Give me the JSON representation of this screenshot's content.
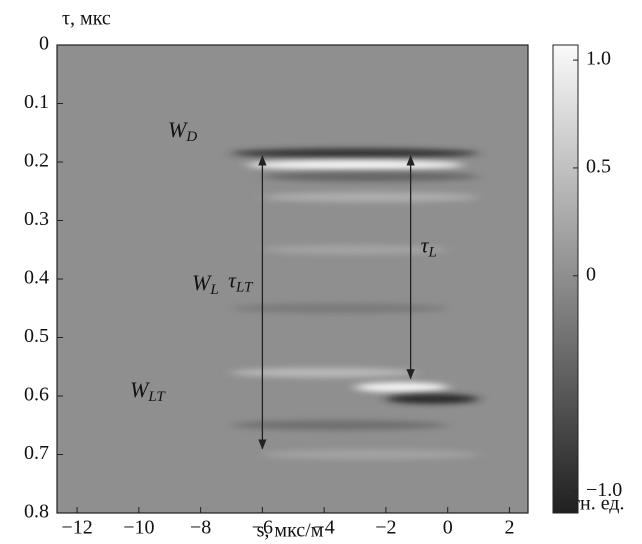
{
  "chart_data": {
    "type": "heatmap",
    "y_label": "τ, мкс",
    "x_label": "s, мкс/м",
    "colorbar_label": "отн. ед.",
    "xlim": [
      -12.65,
      2.6
    ],
    "ylim": [
      0,
      0.8
    ],
    "y_reversed": true,
    "xticks": [
      {
        "value": -12,
        "label": "−12"
      },
      {
        "value": -10,
        "label": "−10"
      },
      {
        "value": -8,
        "label": "−8"
      },
      {
        "value": -6,
        "label": "−6"
      },
      {
        "value": -4,
        "label": "−4"
      },
      {
        "value": -2,
        "label": "−2"
      },
      0,
      2
    ],
    "yticks": [
      0,
      0.1,
      0.2,
      0.3,
      0.4,
      0.5,
      0.6,
      0.7,
      0.8
    ],
    "clim": [
      -1.1,
      1.07
    ],
    "cticks": [
      {
        "value": 1,
        "label": "1.0"
      },
      0.5,
      0,
      {
        "value": -1,
        "label": "−1.0"
      }
    ],
    "streaks": [
      {
        "tau": 0.185,
        "s_start": -7,
        "s_end": 1,
        "amplitude": -0.9
      },
      {
        "tau": 0.205,
        "s_start": -6.5,
        "s_end": 0.5,
        "amplitude": 1.0
      },
      {
        "tau": 0.225,
        "s_start": -6,
        "s_end": 1,
        "amplitude": -0.4
      },
      {
        "tau": 0.26,
        "s_start": -6,
        "s_end": 1,
        "amplitude": 0.3
      },
      {
        "tau": 0.35,
        "s_start": -6,
        "s_end": 0,
        "amplitude": 0.2
      },
      {
        "tau": 0.45,
        "s_start": -7,
        "s_end": 0,
        "amplitude": -0.2
      },
      {
        "tau": 0.56,
        "s_start": -7,
        "s_end": -1,
        "amplitude": 0.4
      },
      {
        "tau": 0.585,
        "s_start": -3,
        "s_end": 0,
        "amplitude": 1.0
      },
      {
        "tau": 0.605,
        "s_start": -2,
        "s_end": 1,
        "amplitude": -1.0
      },
      {
        "tau": 0.65,
        "s_start": -7,
        "s_end": 0,
        "amplitude": -0.3
      },
      {
        "tau": 0.7,
        "s_start": -6,
        "s_end": 1,
        "amplitude": 0.2
      }
    ],
    "arrows": [
      {
        "text": "τ",
        "sub": "LT",
        "s": -6,
        "tau": [
          0.19,
          0.69
        ]
      },
      {
        "text": "τ",
        "sub": "L",
        "s": -1.2,
        "tau": [
          0.19,
          0.57
        ]
      }
    ],
    "annotations": [
      {
        "text": "W",
        "sub": "D"
      },
      {
        "text": "W",
        "sub": "L"
      },
      {
        "text": "W",
        "sub": "LT"
      }
    ]
  }
}
